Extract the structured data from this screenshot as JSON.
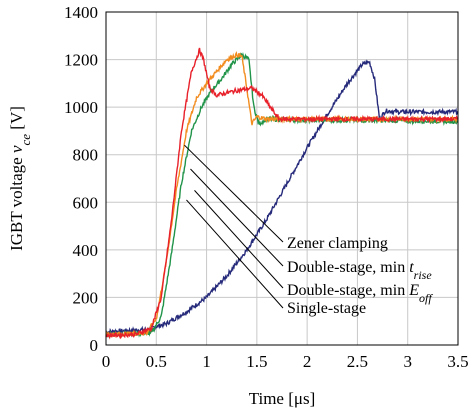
{
  "chart_data": {
    "type": "line",
    "xlabel": "Time [μs]",
    "ylabel_parts": [
      "IGBT voltage ",
      "v",
      "ce",
      " [V]"
    ],
    "xlim": [
      0,
      3.5
    ],
    "ylim": [
      0,
      1400
    ],
    "x_ticks": [
      0,
      0.5,
      1,
      1.5,
      2,
      2.5,
      3,
      3.5
    ],
    "x_tick_labels": [
      "0",
      "0.5",
      "1",
      "1.5",
      "2",
      "2.5",
      "3",
      "3.5"
    ],
    "y_ticks": [
      0,
      200,
      400,
      600,
      800,
      1000,
      1200,
      1400
    ],
    "y_tick_labels": [
      "0",
      "200",
      "400",
      "600",
      "800",
      "1000",
      "1200",
      "1400"
    ],
    "grid": true,
    "series": [
      {
        "name": "Zener clamping",
        "color": "#e8202a",
        "points": [
          [
            0,
            40
          ],
          [
            0.3,
            45
          ],
          [
            0.45,
            70
          ],
          [
            0.55,
            200
          ],
          [
            0.65,
            520
          ],
          [
            0.75,
            900
          ],
          [
            0.85,
            1150
          ],
          [
            0.93,
            1240
          ],
          [
            0.97,
            1200
          ],
          [
            1.03,
            1080
          ],
          [
            1.1,
            1050
          ],
          [
            1.3,
            1070
          ],
          [
            1.45,
            1080
          ],
          [
            1.55,
            1050
          ],
          [
            1.65,
            990
          ],
          [
            1.72,
            950
          ],
          [
            2.0,
            950
          ],
          [
            2.5,
            950
          ],
          [
            3.5,
            950
          ]
        ]
      },
      {
        "name": "Double-stage, min t_rise",
        "color": "#f28c1e",
        "points": [
          [
            0,
            45
          ],
          [
            0.4,
            50
          ],
          [
            0.5,
            110
          ],
          [
            0.6,
            350
          ],
          [
            0.7,
            650
          ],
          [
            0.8,
            900
          ],
          [
            0.9,
            1040
          ],
          [
            1.0,
            1100
          ],
          [
            1.1,
            1150
          ],
          [
            1.2,
            1200
          ],
          [
            1.3,
            1220
          ],
          [
            1.35,
            1215
          ],
          [
            1.4,
            1080
          ],
          [
            1.45,
            930
          ],
          [
            1.5,
            960
          ],
          [
            1.6,
            950
          ],
          [
            2.0,
            950
          ],
          [
            2.5,
            950
          ],
          [
            3.5,
            950
          ]
        ]
      },
      {
        "name": "Double-stage, min E_off",
        "color": "#21944a",
        "points": [
          [
            0,
            45
          ],
          [
            0.45,
            50
          ],
          [
            0.55,
            120
          ],
          [
            0.65,
            380
          ],
          [
            0.75,
            680
          ],
          [
            0.85,
            900
          ],
          [
            0.95,
            1000
          ],
          [
            1.05,
            1070
          ],
          [
            1.15,
            1120
          ],
          [
            1.25,
            1180
          ],
          [
            1.35,
            1220
          ],
          [
            1.42,
            1200
          ],
          [
            1.47,
            1000
          ],
          [
            1.52,
            930
          ],
          [
            1.6,
            950
          ],
          [
            2.0,
            945
          ],
          [
            2.5,
            945
          ],
          [
            3.5,
            940
          ]
        ]
      },
      {
        "name": "Single-stage",
        "color": "#262a7a",
        "points": [
          [
            0,
            55
          ],
          [
            0.4,
            65
          ],
          [
            0.6,
            90
          ],
          [
            0.8,
            140
          ],
          [
            1.0,
            200
          ],
          [
            1.2,
            290
          ],
          [
            1.4,
            400
          ],
          [
            1.6,
            530
          ],
          [
            1.8,
            680
          ],
          [
            2.0,
            830
          ],
          [
            2.2,
            970
          ],
          [
            2.4,
            1100
          ],
          [
            2.55,
            1180
          ],
          [
            2.62,
            1190
          ],
          [
            2.67,
            1120
          ],
          [
            2.72,
            950
          ],
          [
            2.78,
            985
          ],
          [
            2.9,
            980
          ],
          [
            3.2,
            980
          ],
          [
            3.5,
            980
          ]
        ]
      }
    ],
    "annotations": [
      {
        "text": "Zener clamping",
        "italic": ""
      },
      {
        "text": "Double-stage, min ",
        "italic": "t",
        "sub": "rise"
      },
      {
        "text": "Double-stage, min ",
        "italic": "E",
        "sub": "off"
      },
      {
        "text": "Single-stage",
        "italic": ""
      }
    ]
  }
}
